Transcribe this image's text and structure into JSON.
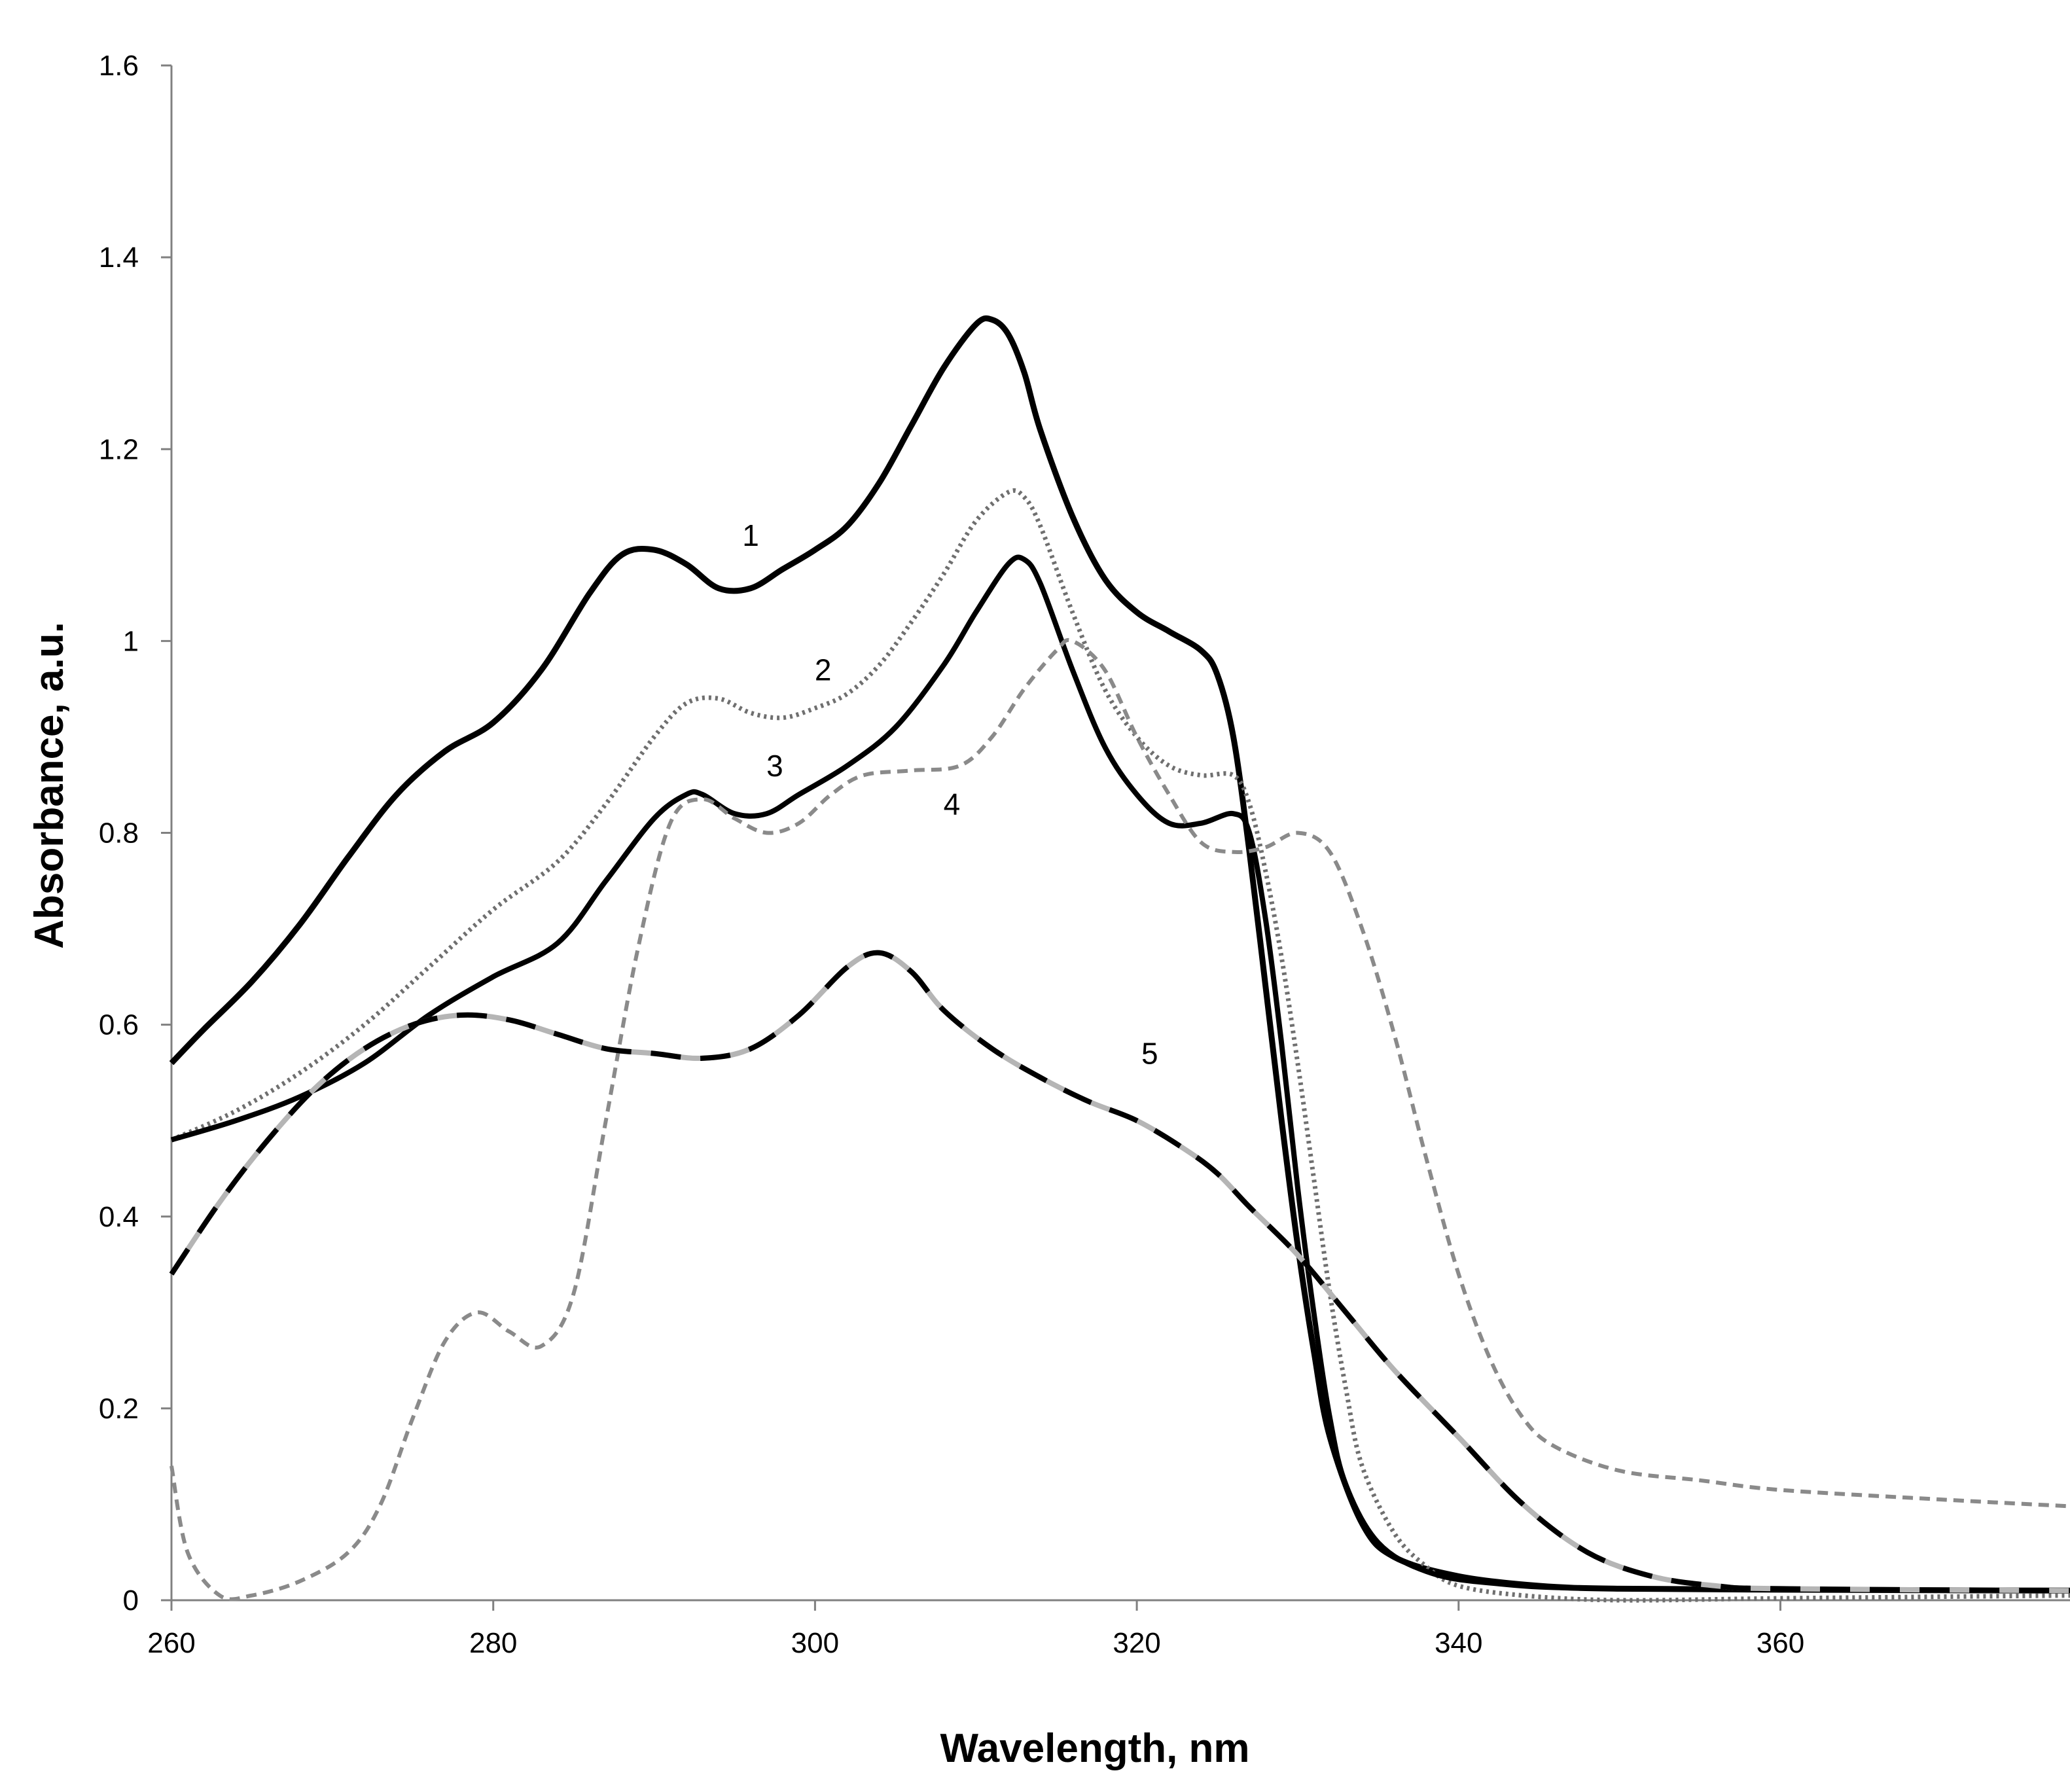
{
  "chart_data": {
    "type": "line",
    "title": "",
    "xlabel": "Wavelength, nm",
    "ylabel": "Absorbance, a.u.",
    "xlim": [
      260,
      378
    ],
    "ylim": [
      0,
      1.6
    ],
    "x_ticks": [
      260,
      280,
      300,
      320,
      340,
      360
    ],
    "x_tick_labels": [
      "260",
      "280",
      "300",
      "320",
      "340",
      "360"
    ],
    "y_ticks": [
      0,
      0.2,
      0.4,
      0.6,
      0.8,
      1.0,
      1.2,
      1.4,
      1.6
    ],
    "y_tick_labels": [
      "0",
      "0.2",
      "0.4",
      "0.6",
      "0.8",
      "1",
      "1.2",
      "1.4",
      "1.6"
    ],
    "grid": false,
    "legend": "none (curves labelled inline)",
    "series": [
      {
        "name": "1",
        "label_at": [
          296,
          1.11
        ],
        "style": "solid-black-thick",
        "points": [
          [
            260,
            0.56
          ],
          [
            262,
            0.595
          ],
          [
            265,
            0.645
          ],
          [
            268,
            0.705
          ],
          [
            271,
            0.775
          ],
          [
            274,
            0.84
          ],
          [
            277,
            0.885
          ],
          [
            280,
            0.915
          ],
          [
            283,
            0.97
          ],
          [
            286,
            1.05
          ],
          [
            288,
            1.09
          ],
          [
            290,
            1.095
          ],
          [
            292,
            1.08
          ],
          [
            294,
            1.055
          ],
          [
            296,
            1.055
          ],
          [
            298,
            1.075
          ],
          [
            300,
            1.095
          ],
          [
            302,
            1.12
          ],
          [
            304,
            1.165
          ],
          [
            306,
            1.225
          ],
          [
            308,
            1.285
          ],
          [
            310,
            1.33
          ],
          [
            311,
            1.335
          ],
          [
            312,
            1.32
          ],
          [
            313,
            1.28
          ],
          [
            314,
            1.22
          ],
          [
            316,
            1.13
          ],
          [
            318,
            1.065
          ],
          [
            320,
            1.03
          ],
          [
            322,
            1.01
          ],
          [
            324,
            0.99
          ],
          [
            325,
            0.965
          ],
          [
            326,
            0.9
          ],
          [
            327,
            0.78
          ],
          [
            328,
            0.64
          ],
          [
            329,
            0.5
          ],
          [
            330,
            0.37
          ],
          [
            331,
            0.26
          ],
          [
            332,
            0.17
          ],
          [
            334,
            0.08
          ],
          [
            336,
            0.045
          ],
          [
            340,
            0.025
          ],
          [
            345,
            0.015
          ],
          [
            350,
            0.012
          ],
          [
            360,
            0.011
          ],
          [
            378,
            0.01
          ]
        ]
      },
      {
        "name": "2",
        "label_at": [
          300.5,
          0.97
        ],
        "style": "dotted-gray",
        "points": [
          [
            260,
            0.48
          ],
          [
            264,
            0.51
          ],
          [
            268,
            0.55
          ],
          [
            272,
            0.6
          ],
          [
            276,
            0.66
          ],
          [
            280,
            0.72
          ],
          [
            284,
            0.77
          ],
          [
            287,
            0.83
          ],
          [
            290,
            0.9
          ],
          [
            292,
            0.935
          ],
          [
            294,
            0.94
          ],
          [
            296,
            0.925
          ],
          [
            298,
            0.92
          ],
          [
            300,
            0.93
          ],
          [
            302,
            0.945
          ],
          [
            304,
            0.975
          ],
          [
            306,
            1.02
          ],
          [
            308,
            1.07
          ],
          [
            310,
            1.125
          ],
          [
            312,
            1.155
          ],
          [
            313,
            1.15
          ],
          [
            314,
            1.12
          ],
          [
            316,
            1.03
          ],
          [
            318,
            0.95
          ],
          [
            320,
            0.9
          ],
          [
            322,
            0.87
          ],
          [
            324,
            0.86
          ],
          [
            326,
            0.86
          ],
          [
            327,
            0.83
          ],
          [
            328,
            0.76
          ],
          [
            329,
            0.67
          ],
          [
            330,
            0.56
          ],
          [
            331,
            0.44
          ],
          [
            332,
            0.32
          ],
          [
            333,
            0.22
          ],
          [
            334,
            0.14
          ],
          [
            336,
            0.07
          ],
          [
            338,
            0.035
          ],
          [
            340,
            0.015
          ],
          [
            344,
            0.005
          ],
          [
            350,
            0.0
          ],
          [
            360,
            0.002
          ],
          [
            378,
            0.005
          ]
        ]
      },
      {
        "name": "3",
        "label_at": [
          297.5,
          0.87
        ],
        "style": "solid-black",
        "points": [
          [
            260,
            0.48
          ],
          [
            264,
            0.5
          ],
          [
            268,
            0.525
          ],
          [
            272,
            0.56
          ],
          [
            276,
            0.61
          ],
          [
            280,
            0.65
          ],
          [
            284,
            0.685
          ],
          [
            287,
            0.75
          ],
          [
            290,
            0.815
          ],
          [
            292,
            0.84
          ],
          [
            293,
            0.84
          ],
          [
            295,
            0.82
          ],
          [
            297,
            0.82
          ],
          [
            299,
            0.84
          ],
          [
            302,
            0.87
          ],
          [
            305,
            0.91
          ],
          [
            308,
            0.975
          ],
          [
            310,
            1.03
          ],
          [
            312,
            1.08
          ],
          [
            313,
            1.085
          ],
          [
            314,
            1.06
          ],
          [
            316,
            0.97
          ],
          [
            318,
            0.89
          ],
          [
            320,
            0.84
          ],
          [
            322,
            0.81
          ],
          [
            324,
            0.81
          ],
          [
            326,
            0.82
          ],
          [
            327,
            0.8
          ],
          [
            328,
            0.71
          ],
          [
            329,
            0.58
          ],
          [
            330,
            0.43
          ],
          [
            331,
            0.3
          ],
          [
            332,
            0.19
          ],
          [
            333,
            0.12
          ],
          [
            335,
            0.06
          ],
          [
            338,
            0.03
          ],
          [
            342,
            0.018
          ],
          [
            350,
            0.012
          ],
          [
            378,
            0.01
          ]
        ]
      },
      {
        "name": "4",
        "label_at": [
          308.5,
          0.83
        ],
        "style": "dashed-gray",
        "points": [
          [
            260,
            0.14
          ],
          [
            261,
            0.05
          ],
          [
            263,
            0.005
          ],
          [
            265,
            0.005
          ],
          [
            268,
            0.02
          ],
          [
            271,
            0.05
          ],
          [
            273,
            0.1
          ],
          [
            275,
            0.19
          ],
          [
            277,
            0.27
          ],
          [
            279,
            0.3
          ],
          [
            281,
            0.28
          ],
          [
            283,
            0.265
          ],
          [
            285,
            0.32
          ],
          [
            287,
            0.5
          ],
          [
            289,
            0.68
          ],
          [
            291,
            0.81
          ],
          [
            293,
            0.835
          ],
          [
            295,
            0.815
          ],
          [
            297,
            0.8
          ],
          [
            299,
            0.81
          ],
          [
            301,
            0.84
          ],
          [
            303,
            0.86
          ],
          [
            306,
            0.865
          ],
          [
            309,
            0.87
          ],
          [
            311,
            0.9
          ],
          [
            313,
            0.95
          ],
          [
            315,
            0.99
          ],
          [
            316,
            1.0
          ],
          [
            318,
            0.97
          ],
          [
            320,
            0.9
          ],
          [
            322,
            0.84
          ],
          [
            324,
            0.79
          ],
          [
            326,
            0.78
          ],
          [
            328,
            0.785
          ],
          [
            330,
            0.8
          ],
          [
            332,
            0.78
          ],
          [
            334,
            0.7
          ],
          [
            336,
            0.59
          ],
          [
            338,
            0.46
          ],
          [
            340,
            0.34
          ],
          [
            342,
            0.25
          ],
          [
            344,
            0.19
          ],
          [
            346,
            0.16
          ],
          [
            350,
            0.135
          ],
          [
            355,
            0.125
          ],
          [
            360,
            0.115
          ],
          [
            370,
            0.105
          ],
          [
            378,
            0.098
          ]
        ]
      },
      {
        "name": "5",
        "label_at": [
          320.8,
          0.57
        ],
        "style": "long-dash-black-gray",
        "points": [
          [
            260,
            0.34
          ],
          [
            263,
            0.415
          ],
          [
            266,
            0.48
          ],
          [
            269,
            0.535
          ],
          [
            272,
            0.575
          ],
          [
            275,
            0.6
          ],
          [
            278,
            0.61
          ],
          [
            281,
            0.605
          ],
          [
            284,
            0.59
          ],
          [
            287,
            0.575
          ],
          [
            290,
            0.57
          ],
          [
            293,
            0.565
          ],
          [
            296,
            0.575
          ],
          [
            299,
            0.61
          ],
          [
            302,
            0.66
          ],
          [
            304,
            0.675
          ],
          [
            306,
            0.655
          ],
          [
            308,
            0.615
          ],
          [
            311,
            0.575
          ],
          [
            314,
            0.545
          ],
          [
            317,
            0.52
          ],
          [
            320,
            0.5
          ],
          [
            323,
            0.47
          ],
          [
            325,
            0.445
          ],
          [
            327,
            0.41
          ],
          [
            330,
            0.36
          ],
          [
            333,
            0.3
          ],
          [
            336,
            0.24
          ],
          [
            340,
            0.17
          ],
          [
            344,
            0.1
          ],
          [
            348,
            0.05
          ],
          [
            352,
            0.025
          ],
          [
            356,
            0.015
          ],
          [
            360,
            0.012
          ],
          [
            378,
            0.01
          ]
        ]
      }
    ]
  }
}
